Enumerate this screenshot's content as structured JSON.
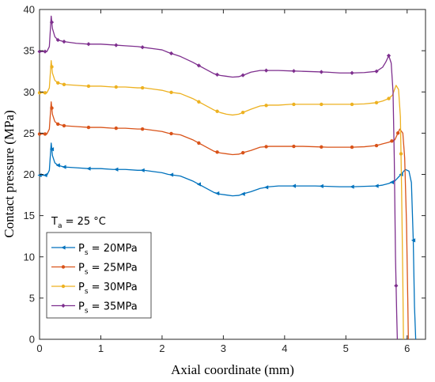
{
  "chart_data": {
    "type": "line",
    "title": "",
    "xlabel": "Axial coordinate (mm)",
    "ylabel": "Contact pressure (MPa)",
    "xlim": [
      0,
      6.3
    ],
    "ylim": [
      0,
      40
    ],
    "xticks": [
      "0",
      "1",
      "2",
      "3",
      "4",
      "5",
      "6"
    ],
    "yticks": [
      "0",
      "5",
      "10",
      "15",
      "20",
      "25",
      "30",
      "35",
      "40"
    ],
    "grid": false,
    "legend_position": "lower-left",
    "annotation": {
      "main": "T",
      "sub": "a",
      "rest": " = 25 °C"
    },
    "series": [
      {
        "name": "P",
        "name_sub": "s",
        "name_rest": " = 20MPa",
        "color": "#0072BD",
        "marker": "triangle-left",
        "x": [
          0,
          0.05,
          0.12,
          0.16,
          0.19,
          0.21,
          0.25,
          0.3,
          0.4,
          0.6,
          0.8,
          1.0,
          1.2,
          1.4,
          1.6,
          1.7,
          1.9,
          2.0,
          2.1,
          2.3,
          2.5,
          2.7,
          2.85,
          2.95,
          3.05,
          3.15,
          3.25,
          3.35,
          3.45,
          3.6,
          3.75,
          3.9,
          4.1,
          4.3,
          4.5,
          4.7,
          4.9,
          5.1,
          5.3,
          5.5,
          5.6,
          5.7,
          5.8,
          5.9,
          5.97,
          6.03,
          6.07,
          6.1,
          6.12,
          6.14
        ],
        "y": [
          19.9,
          19.9,
          19.9,
          20.5,
          23.8,
          22.3,
          21.4,
          21.1,
          20.9,
          20.8,
          20.7,
          20.7,
          20.6,
          20.6,
          20.5,
          20.5,
          20.3,
          20.2,
          20.0,
          19.8,
          19.2,
          18.4,
          17.8,
          17.6,
          17.5,
          17.4,
          17.45,
          17.7,
          17.9,
          18.3,
          18.5,
          18.6,
          18.6,
          18.6,
          18.6,
          18.55,
          18.5,
          18.5,
          18.55,
          18.6,
          18.7,
          18.9,
          19.2,
          20.0,
          20.6,
          20.4,
          19.0,
          12.0,
          4.0,
          0.0
        ],
        "markers_x": [
          0,
          0.09,
          0.2,
          0.3,
          0.4,
          0.8,
          1.25,
          1.68,
          2.15,
          2.6,
          2.9,
          3.32,
          3.7,
          4.15,
          4.6,
          5.1,
          5.5,
          5.75,
          5.9,
          6.1
        ]
      },
      {
        "name": "P",
        "name_sub": "s",
        "name_rest": " = 25MPa",
        "color": "#D95319",
        "marker": "circle",
        "x": [
          0,
          0.05,
          0.12,
          0.16,
          0.19,
          0.21,
          0.25,
          0.3,
          0.4,
          0.6,
          0.8,
          1.0,
          1.2,
          1.4,
          1.6,
          1.7,
          1.9,
          2.0,
          2.1,
          2.3,
          2.5,
          2.7,
          2.85,
          2.95,
          3.05,
          3.15,
          3.25,
          3.35,
          3.45,
          3.6,
          3.75,
          3.9,
          4.1,
          4.3,
          4.5,
          4.7,
          4.9,
          5.1,
          5.3,
          5.5,
          5.6,
          5.7,
          5.8,
          5.88,
          5.93,
          5.96,
          5.99,
          6.01,
          6.02
        ],
        "y": [
          24.9,
          24.9,
          24.9,
          25.5,
          28.8,
          27.3,
          26.4,
          26.1,
          25.9,
          25.8,
          25.7,
          25.7,
          25.6,
          25.6,
          25.5,
          25.5,
          25.3,
          25.2,
          25.0,
          24.8,
          24.2,
          23.4,
          22.8,
          22.6,
          22.5,
          22.4,
          22.45,
          22.7,
          22.9,
          23.3,
          23.4,
          23.4,
          23.4,
          23.4,
          23.35,
          23.3,
          23.3,
          23.3,
          23.35,
          23.5,
          23.7,
          23.9,
          24.2,
          25.5,
          25.0,
          22.0,
          14.0,
          5.0,
          0.0
        ],
        "markers_x": [
          0,
          0.09,
          0.2,
          0.3,
          0.4,
          0.8,
          1.25,
          1.68,
          2.15,
          2.6,
          2.9,
          3.32,
          3.7,
          4.15,
          4.6,
          5.1,
          5.5,
          5.75,
          5.85
        ]
      },
      {
        "name": "P",
        "name_sub": "s",
        "name_rest": " = 30MPa",
        "color": "#EDB120",
        "marker": "circle",
        "x": [
          0,
          0.05,
          0.12,
          0.16,
          0.19,
          0.21,
          0.25,
          0.3,
          0.4,
          0.6,
          0.8,
          1.0,
          1.2,
          1.4,
          1.6,
          1.7,
          1.9,
          2.0,
          2.1,
          2.3,
          2.5,
          2.7,
          2.85,
          2.95,
          3.05,
          3.15,
          3.25,
          3.35,
          3.45,
          3.6,
          3.75,
          3.9,
          4.1,
          4.3,
          4.5,
          4.7,
          4.9,
          5.1,
          5.3,
          5.5,
          5.6,
          5.7,
          5.76,
          5.82,
          5.86,
          5.89,
          5.91,
          5.93,
          5.94
        ],
        "y": [
          29.9,
          29.9,
          29.9,
          30.5,
          33.8,
          32.3,
          31.4,
          31.1,
          30.9,
          30.8,
          30.7,
          30.7,
          30.6,
          30.6,
          30.5,
          30.5,
          30.3,
          30.2,
          30.0,
          29.8,
          29.2,
          28.4,
          27.8,
          27.5,
          27.3,
          27.2,
          27.3,
          27.6,
          27.9,
          28.3,
          28.4,
          28.4,
          28.5,
          28.5,
          28.5,
          28.5,
          28.5,
          28.5,
          28.55,
          28.7,
          28.9,
          29.2,
          29.6,
          30.8,
          30.3,
          27.0,
          18.0,
          7.0,
          0.0
        ],
        "markers_x": [
          0,
          0.09,
          0.2,
          0.3,
          0.4,
          0.8,
          1.25,
          1.68,
          2.15,
          2.6,
          2.9,
          3.32,
          3.7,
          4.15,
          4.6,
          5.1,
          5.5,
          5.7,
          5.9
        ]
      },
      {
        "name": "P",
        "name_sub": "s",
        "name_rest": " = 35MPa",
        "color": "#7E2F8E",
        "marker": "diamond",
        "x": [
          0,
          0.05,
          0.12,
          0.16,
          0.19,
          0.21,
          0.25,
          0.3,
          0.4,
          0.6,
          0.8,
          1.0,
          1.2,
          1.4,
          1.6,
          1.7,
          1.9,
          2.0,
          2.1,
          2.3,
          2.5,
          2.7,
          2.85,
          2.95,
          3.05,
          3.15,
          3.25,
          3.35,
          3.45,
          3.6,
          3.75,
          3.9,
          4.1,
          4.3,
          4.5,
          4.7,
          4.9,
          5.1,
          5.3,
          5.5,
          5.6,
          5.65,
          5.7,
          5.74,
          5.77,
          5.79,
          5.81,
          5.83,
          5.84
        ],
        "y": [
          34.9,
          34.9,
          34.9,
          35.5,
          39.2,
          37.7,
          36.7,
          36.3,
          36.1,
          35.9,
          35.8,
          35.8,
          35.7,
          35.6,
          35.5,
          35.4,
          35.2,
          35.1,
          34.8,
          34.3,
          33.6,
          32.8,
          32.2,
          32.0,
          31.9,
          31.8,
          31.85,
          32.1,
          32.4,
          32.6,
          32.6,
          32.6,
          32.55,
          32.5,
          32.45,
          32.4,
          32.3,
          32.3,
          32.35,
          32.5,
          33.0,
          33.6,
          34.4,
          33.5,
          30.0,
          22.0,
          10.0,
          3.0,
          0.0
        ],
        "markers_x": [
          0,
          0.09,
          0.2,
          0.3,
          0.4,
          0.8,
          1.25,
          1.68,
          2.15,
          2.6,
          2.9,
          3.32,
          3.7,
          4.15,
          4.6,
          5.1,
          5.5,
          5.7,
          5.82
        ]
      }
    ]
  }
}
